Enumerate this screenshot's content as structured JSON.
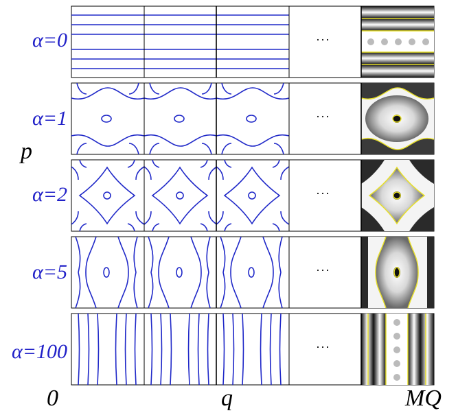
{
  "figure": {
    "panels": [
      {
        "alpha_label": "α=0"
      },
      {
        "alpha_label": "α=1"
      },
      {
        "alpha_label": "α=2"
      },
      {
        "alpha_label": "α=5"
      },
      {
        "alpha_label": "α=100"
      }
    ],
    "ellipsis": "···",
    "axis_labels": {
      "p": "p",
      "origin": "0",
      "q": "q",
      "end": "MQ"
    },
    "colors": {
      "contour": "#1f28c8",
      "separatrix": "#e8e02a",
      "frame": "#000000",
      "label": "#2020c8"
    }
  }
}
